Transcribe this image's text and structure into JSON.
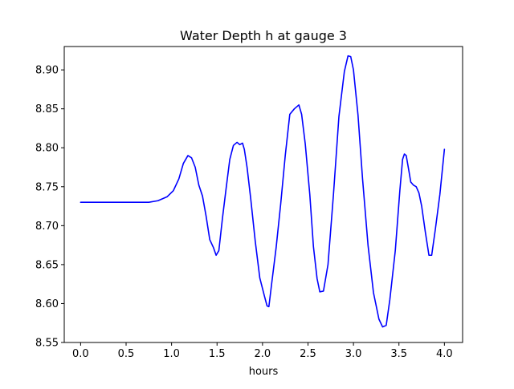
{
  "chart_data": {
    "type": "line",
    "title": "Water Depth h at gauge 3",
    "xlabel": "hours",
    "ylabel": "",
    "xlim": [
      -0.18,
      4.2
    ],
    "ylim": [
      8.55,
      8.93
    ],
    "xticks": [
      0.0,
      0.5,
      1.0,
      1.5,
      2.0,
      2.5,
      3.0,
      3.5,
      4.0
    ],
    "xtick_labels": [
      "0.0",
      "0.5",
      "1.0",
      "1.5",
      "2.0",
      "2.5",
      "3.0",
      "3.5",
      "4.0"
    ],
    "yticks": [
      8.55,
      8.6,
      8.65,
      8.7,
      8.75,
      8.8,
      8.85,
      8.9
    ],
    "ytick_labels": [
      "8.55",
      "8.60",
      "8.65",
      "8.70",
      "8.75",
      "8.80",
      "8.85",
      "8.90"
    ],
    "grid": false,
    "series": [
      {
        "color": "#0000ff",
        "x": [
          0.0,
          0.3,
          0.6,
          0.75,
          0.85,
          0.95,
          1.02,
          1.08,
          1.13,
          1.18,
          1.22,
          1.26,
          1.3,
          1.34,
          1.38,
          1.42,
          1.46,
          1.49,
          1.52,
          1.56,
          1.6,
          1.64,
          1.68,
          1.72,
          1.75,
          1.78,
          1.8,
          1.83,
          1.87,
          1.92,
          1.97,
          2.02,
          2.05,
          2.07,
          2.1,
          2.15,
          2.2,
          2.25,
          2.3,
          2.35,
          2.4,
          2.43,
          2.47,
          2.52,
          2.56,
          2.6,
          2.63,
          2.67,
          2.72,
          2.78,
          2.84,
          2.9,
          2.94,
          2.97,
          3.0,
          3.05,
          3.1,
          3.16,
          3.22,
          3.28,
          3.32,
          3.36,
          3.4,
          3.46,
          3.51,
          3.54,
          3.56,
          3.58,
          3.61,
          3.63,
          3.66,
          3.69,
          3.72,
          3.75,
          3.79,
          3.83,
          3.86,
          3.9,
          3.95,
          4.0
        ],
        "y": [
          8.73,
          8.73,
          8.73,
          8.73,
          8.732,
          8.737,
          8.745,
          8.76,
          8.78,
          8.79,
          8.787,
          8.775,
          8.752,
          8.738,
          8.712,
          8.682,
          8.672,
          8.662,
          8.668,
          8.71,
          8.748,
          8.785,
          8.803,
          8.807,
          8.804,
          8.806,
          8.798,
          8.775,
          8.735,
          8.68,
          8.633,
          8.61,
          8.597,
          8.596,
          8.625,
          8.672,
          8.728,
          8.79,
          8.843,
          8.85,
          8.855,
          8.843,
          8.805,
          8.74,
          8.673,
          8.632,
          8.615,
          8.616,
          8.65,
          8.74,
          8.84,
          8.898,
          8.918,
          8.917,
          8.9,
          8.842,
          8.76,
          8.675,
          8.614,
          8.58,
          8.57,
          8.572,
          8.605,
          8.668,
          8.745,
          8.785,
          8.792,
          8.79,
          8.77,
          8.756,
          8.752,
          8.75,
          8.742,
          8.725,
          8.692,
          8.662,
          8.662,
          8.695,
          8.74,
          8.798
        ]
      }
    ]
  }
}
